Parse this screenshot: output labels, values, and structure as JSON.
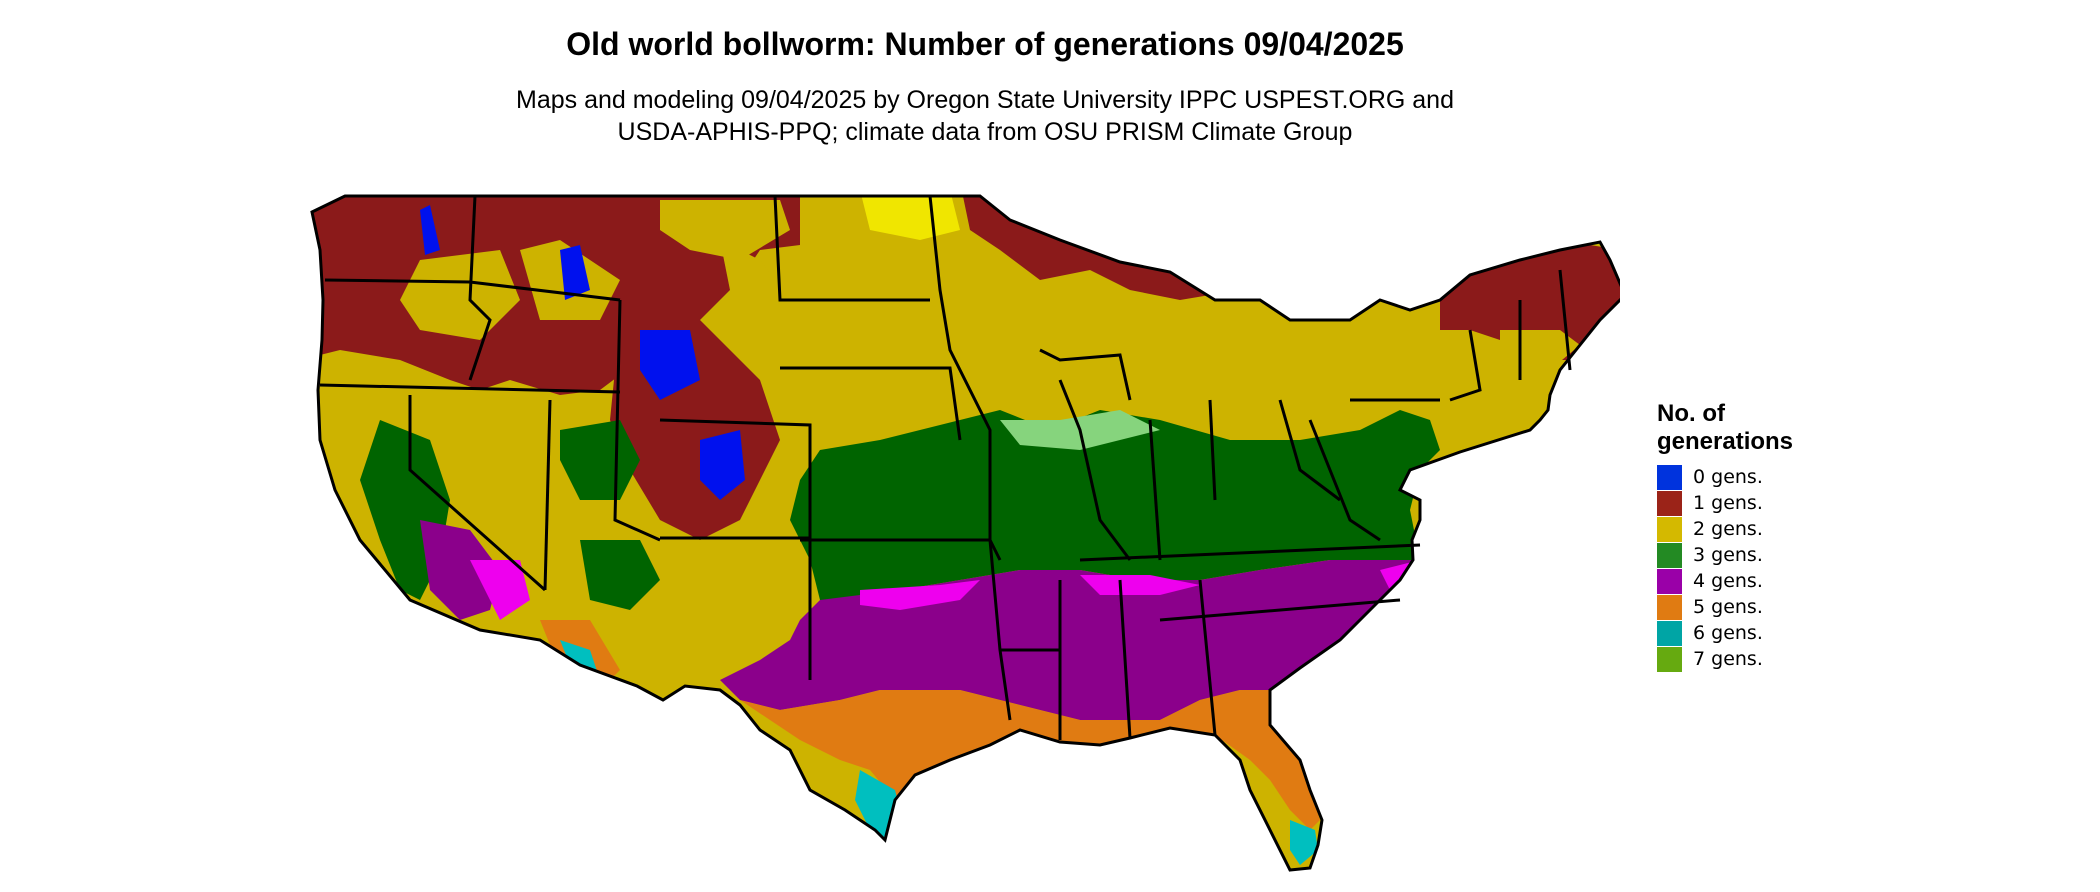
{
  "title": "Old world bollworm: Number of generations 09/04/2025",
  "subtitle": [
    "Maps and modeling 09/04/2025 by Oregon State University IPPC USPEST.ORG and",
    "USDA-APHIS-PPQ; climate data from OSU PRISM Climate Group"
  ],
  "legend": {
    "title_lines": [
      "No. of",
      "generations"
    ],
    "items": [
      {
        "label": "0 gens.",
        "color": "#0033dd"
      },
      {
        "label": "1 gens.",
        "color": "#9b2318"
      },
      {
        "label": "2 gens.",
        "color": "#d4b900"
      },
      {
        "label": "3 gens.",
        "color": "#238a23"
      },
      {
        "label": "4 gens.",
        "color": "#9a00a8"
      },
      {
        "label": "5 gens.",
        "color": "#e07b12"
      },
      {
        "label": "6 gens.",
        "color": "#00a5a5"
      },
      {
        "label": "7 gens.",
        "color": "#66aa10"
      }
    ]
  },
  "map": {
    "region": "contiguous-united-states",
    "colors": {
      "red": "#8b1a1a",
      "yellow": "#cdb300",
      "lightyellow": "#f0e600",
      "green": "#006400",
      "lightgreen": "#86d47d",
      "purple": "#8b008b",
      "magenta": "#ee00ee",
      "orange": "#e07b12",
      "cyan": "#00bfbf",
      "blue": "#0011ee",
      "border": "#000000",
      "background": "#ffffff"
    }
  }
}
